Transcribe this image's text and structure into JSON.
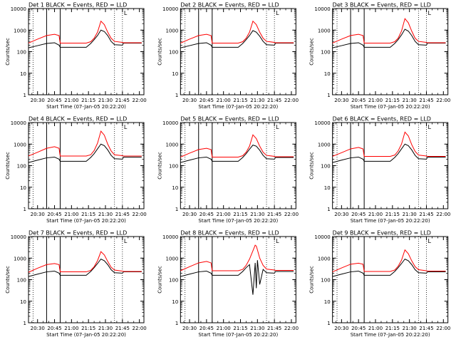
{
  "figure": {
    "start_time_label": "Start Time (07-Jan-05 20:22:20)",
    "ylabel": "Counts/sec",
    "x_tick_labels": [
      "20:30",
      "20:45",
      "21:00",
      "21:15",
      "21:30",
      "21:45",
      "22:00"
    ],
    "y_tick_labels": [
      "1",
      "10",
      "100",
      "1000",
      "10000"
    ],
    "colors": {
      "events": "#000000",
      "lld": "#ff0000",
      "axes": "#000000"
    }
  },
  "chart_data": [
    {
      "type": "line",
      "title": "Det 1  BLACK = Events, RED = LLD",
      "ylabel": "Counts/sec",
      "xlabel": "Start Time (07-Jan-05 20:22:20)",
      "yscale": "log",
      "ylim": [
        1,
        10000
      ],
      "xlim": [
        "20:22",
        "22:04"
      ],
      "x": [
        "20:22",
        "20:30",
        "20:38",
        "20:45",
        "20:49",
        "20:50",
        "20:57",
        "21:05",
        "21:13",
        "21:17",
        "21:20",
        "21:23",
        "21:26",
        "21:29",
        "21:32",
        "21:35",
        "21:38",
        "21:45",
        "21:46",
        "21:55",
        "22:02"
      ],
      "series": [
        {
          "name": "BLACK = Events",
          "values": [
            150,
            190,
            240,
            260,
            200,
            160,
            160,
            160,
            160,
            240,
            360,
            560,
            1000,
            860,
            560,
            300,
            210,
            200,
            250,
            250,
            250
          ]
        },
        {
          "name": "RED = LLD",
          "values": [
            250,
            380,
            560,
            640,
            560,
            250,
            250,
            250,
            250,
            290,
            420,
            800,
            2600,
            1800,
            800,
            420,
            300,
            270,
            260,
            260,
            260
          ]
        }
      ],
      "vertical_lines": [
        "20:38",
        "20:50"
      ],
      "dotted_lines": [
        "20:26",
        "21:38",
        "21:45"
      ],
      "marker_label": "L"
    },
    {
      "type": "line",
      "title": "Det 2  BLACK = Events, RED = LLD",
      "ylabel": "Counts/sec",
      "xlabel": "Start Time (07-Jan-05 20:22:20)",
      "yscale": "log",
      "ylim": [
        1,
        10000
      ],
      "xlim": [
        "20:22",
        "22:04"
      ],
      "x": [
        "20:22",
        "20:30",
        "20:38",
        "20:45",
        "20:49",
        "20:50",
        "20:57",
        "21:05",
        "21:13",
        "21:17",
        "21:20",
        "21:23",
        "21:26",
        "21:29",
        "21:32",
        "21:35",
        "21:38",
        "21:45",
        "21:46",
        "21:55",
        "22:02"
      ],
      "series": [
        {
          "name": "BLACK = Events",
          "values": [
            150,
            190,
            240,
            260,
            200,
            160,
            160,
            160,
            160,
            240,
            360,
            560,
            950,
            800,
            520,
            300,
            210,
            200,
            250,
            250,
            250
          ]
        },
        {
          "name": "RED = LLD",
          "values": [
            250,
            380,
            560,
            640,
            560,
            250,
            250,
            250,
            250,
            290,
            420,
            800,
            2600,
            1800,
            800,
            420,
            300,
            270,
            260,
            260,
            260
          ]
        }
      ],
      "vertical_lines": [
        "20:38",
        "20:50"
      ],
      "dotted_lines": [
        "20:26",
        "21:38",
        "21:45"
      ],
      "marker_label": "L"
    },
    {
      "type": "line",
      "title": "Det 3  BLACK = Events, RED = LLD",
      "ylabel": "Counts/sec",
      "xlabel": "Start Time (07-Jan-05 20:22:20)",
      "yscale": "log",
      "ylim": [
        1,
        10000
      ],
      "xlim": [
        "20:22",
        "22:04"
      ],
      "x": [
        "20:22",
        "20:30",
        "20:38",
        "20:45",
        "20:49",
        "20:50",
        "20:57",
        "21:05",
        "21:13",
        "21:17",
        "21:20",
        "21:23",
        "21:26",
        "21:29",
        "21:32",
        "21:35",
        "21:38",
        "21:45",
        "21:46",
        "21:55",
        "22:02"
      ],
      "series": [
        {
          "name": "BLACK = Events",
          "values": [
            150,
            190,
            240,
            260,
            200,
            160,
            160,
            160,
            160,
            240,
            360,
            600,
            1100,
            900,
            560,
            300,
            210,
            200,
            250,
            250,
            250
          ]
        },
        {
          "name": "RED = LLD",
          "values": [
            250,
            380,
            560,
            640,
            560,
            250,
            250,
            250,
            250,
            290,
            420,
            900,
            3400,
            2200,
            900,
            420,
            300,
            270,
            260,
            260,
            260
          ]
        }
      ],
      "vertical_lines": [
        "20:38",
        "20:50"
      ],
      "dotted_lines": [
        "20:26",
        "21:38",
        "21:45"
      ],
      "marker_label": "L"
    },
    {
      "type": "line",
      "title": "Det 4  BLACK = Events, RED = LLD",
      "ylabel": "Counts/sec",
      "xlabel": "Start Time (07-Jan-05 20:22:20)",
      "yscale": "log",
      "ylim": [
        1,
        10000
      ],
      "xlim": [
        "20:22",
        "22:04"
      ],
      "x": [
        "20:22",
        "20:30",
        "20:38",
        "20:45",
        "20:49",
        "20:50",
        "20:57",
        "21:05",
        "21:13",
        "21:17",
        "21:20",
        "21:23",
        "21:26",
        "21:29",
        "21:32",
        "21:35",
        "21:38",
        "21:45",
        "21:46",
        "21:55",
        "22:02"
      ],
      "series": [
        {
          "name": "BLACK = Events",
          "values": [
            140,
            180,
            230,
            250,
            200,
            160,
            160,
            160,
            160,
            240,
            360,
            600,
            1000,
            850,
            540,
            300,
            210,
            200,
            250,
            250,
            250
          ]
        },
        {
          "name": "RED = LLD",
          "values": [
            280,
            420,
            640,
            760,
            640,
            280,
            280,
            280,
            280,
            320,
            500,
            1100,
            4000,
            2600,
            1000,
            480,
            320,
            290,
            280,
            280,
            280
          ]
        }
      ],
      "vertical_lines": [
        "20:38",
        "20:50"
      ],
      "dotted_lines": [
        "20:26",
        "21:38",
        "21:45"
      ],
      "marker_label": "L"
    },
    {
      "type": "line",
      "title": "Det 5  BLACK = Events, RED = LLD",
      "ylabel": "Counts/sec",
      "xlabel": "Start Time (07-Jan-05 20:22:20)",
      "yscale": "log",
      "ylim": [
        1,
        10000
      ],
      "xlim": [
        "20:22",
        "22:04"
      ],
      "x": [
        "20:22",
        "20:30",
        "20:38",
        "20:45",
        "20:49",
        "20:50",
        "20:57",
        "21:05",
        "21:13",
        "21:17",
        "21:20",
        "21:23",
        "21:26",
        "21:29",
        "21:32",
        "21:35",
        "21:38",
        "21:45",
        "21:46",
        "21:55",
        "22:02"
      ],
      "series": [
        {
          "name": "BLACK = Events",
          "values": [
            140,
            180,
            230,
            250,
            200,
            160,
            160,
            160,
            160,
            240,
            360,
            580,
            900,
            800,
            520,
            300,
            210,
            200,
            240,
            240,
            240
          ]
        },
        {
          "name": "RED = LLD",
          "values": [
            250,
            380,
            560,
            640,
            560,
            250,
            250,
            250,
            250,
            290,
            420,
            800,
            2700,
            1800,
            800,
            420,
            300,
            270,
            260,
            260,
            260
          ]
        }
      ],
      "vertical_lines": [
        "20:38",
        "20:50"
      ],
      "dotted_lines": [
        "20:26",
        "21:38",
        "21:45"
      ],
      "marker_label": "L"
    },
    {
      "type": "line",
      "title": "Det 6  BLACK = Events, RED = LLD",
      "ylabel": "Counts/sec",
      "xlabel": "Start Time (07-Jan-05 20:22:20)",
      "yscale": "log",
      "ylim": [
        1,
        10000
      ],
      "xlim": [
        "20:22",
        "22:04"
      ],
      "x": [
        "20:22",
        "20:30",
        "20:38",
        "20:45",
        "20:49",
        "20:50",
        "20:57",
        "21:05",
        "21:13",
        "21:17",
        "21:20",
        "21:23",
        "21:26",
        "21:29",
        "21:32",
        "21:35",
        "21:38",
        "21:45",
        "21:46",
        "21:55",
        "22:02"
      ],
      "series": [
        {
          "name": "BLACK = Events",
          "values": [
            140,
            180,
            230,
            250,
            200,
            160,
            160,
            160,
            160,
            240,
            360,
            600,
            1000,
            850,
            540,
            300,
            210,
            200,
            250,
            250,
            250
          ]
        },
        {
          "name": "RED = LLD",
          "values": [
            270,
            400,
            600,
            700,
            600,
            270,
            270,
            270,
            270,
            310,
            480,
            1000,
            3600,
            2400,
            950,
            460,
            310,
            280,
            270,
            270,
            270
          ]
        }
      ],
      "vertical_lines": [
        "20:38",
        "20:50"
      ],
      "dotted_lines": [
        "20:26",
        "21:38",
        "21:45"
      ],
      "marker_label": "L"
    },
    {
      "type": "line",
      "title": "Det 7  BLACK = Events, RED = LLD",
      "ylabel": "Counts/sec",
      "xlabel": "Start Time (07-Jan-05 20:22:20)",
      "yscale": "log",
      "ylim": [
        1,
        10000
      ],
      "xlim": [
        "20:22",
        "22:04"
      ],
      "x": [
        "20:22",
        "20:30",
        "20:38",
        "20:45",
        "20:49",
        "20:50",
        "20:57",
        "21:05",
        "21:13",
        "21:17",
        "21:20",
        "21:23",
        "21:26",
        "21:29",
        "21:32",
        "21:35",
        "21:38",
        "21:45",
        "21:46",
        "21:55",
        "22:02"
      ],
      "series": [
        {
          "name": "BLACK = Events",
          "values": [
            140,
            180,
            230,
            250,
            200,
            160,
            160,
            160,
            160,
            240,
            360,
            560,
            900,
            760,
            500,
            290,
            210,
            200,
            230,
            230,
            230
          ]
        },
        {
          "name": "RED = LLD",
          "values": [
            220,
            340,
            500,
            560,
            500,
            230,
            230,
            230,
            230,
            270,
            400,
            760,
            2000,
            1400,
            700,
            380,
            280,
            250,
            240,
            240,
            240
          ]
        }
      ],
      "vertical_lines": [
        "20:38",
        "20:50"
      ],
      "dotted_lines": [
        "20:26",
        "21:38",
        "21:45"
      ],
      "marker_label": "L"
    },
    {
      "type": "line",
      "title": "Det 8  BLACK = Events, RED = LLD",
      "ylabel": "Counts/sec",
      "xlabel": "Start Time (07-Jan-05 20:22:20)",
      "yscale": "log",
      "ylim": [
        1,
        10000
      ],
      "xlim": [
        "20:22",
        "22:04"
      ],
      "x": [
        "20:22",
        "20:30",
        "20:38",
        "20:45",
        "20:49",
        "20:50",
        "20:57",
        "21:05",
        "21:13",
        "21:17",
        "21:20",
        "21:23",
        "21:26",
        "21:28",
        "21:29",
        "21:30",
        "21:32",
        "21:35",
        "21:38",
        "21:45",
        "21:46",
        "21:55",
        "22:02"
      ],
      "series": [
        {
          "name": "BLACK = Events",
          "values": [
            140,
            180,
            230,
            250,
            200,
            160,
            160,
            160,
            160,
            240,
            360,
            500,
            20,
            600,
            40,
            800,
            60,
            300,
            210,
            200,
            240,
            240,
            240
          ]
        },
        {
          "name": "RED = LLD",
          "values": [
            260,
            400,
            600,
            700,
            600,
            260,
            260,
            260,
            260,
            300,
            460,
            900,
            2200,
            4000,
            3600,
            2400,
            1000,
            460,
            310,
            280,
            270,
            270,
            270
          ]
        }
      ],
      "vertical_lines": [
        "20:38",
        "20:50"
      ],
      "dotted_lines": [
        "20:26",
        "21:38",
        "21:45"
      ],
      "marker_label": "L"
    },
    {
      "type": "line",
      "title": "Det 9  BLACK = Events, RED = LLD",
      "ylabel": "Counts/sec",
      "xlabel": "Start Time (07-Jan-05 20:22:20)",
      "yscale": "log",
      "ylim": [
        1,
        10000
      ],
      "xlim": [
        "20:22",
        "22:04"
      ],
      "x": [
        "20:22",
        "20:30",
        "20:38",
        "20:45",
        "20:49",
        "20:50",
        "20:57",
        "21:05",
        "21:13",
        "21:17",
        "21:20",
        "21:23",
        "21:26",
        "21:29",
        "21:32",
        "21:35",
        "21:38",
        "21:45",
        "21:46",
        "21:55",
        "22:02"
      ],
      "series": [
        {
          "name": "BLACK = Events",
          "values": [
            140,
            180,
            230,
            250,
            200,
            160,
            160,
            160,
            160,
            240,
            360,
            560,
            900,
            760,
            500,
            290,
            210,
            200,
            230,
            230,
            230
          ]
        },
        {
          "name": "RED = LLD",
          "values": [
            230,
            350,
            520,
            580,
            520,
            240,
            240,
            240,
            240,
            280,
            420,
            800,
            2400,
            1600,
            750,
            400,
            290,
            260,
            250,
            250,
            250
          ]
        }
      ],
      "vertical_lines": [
        "20:38",
        "20:50"
      ],
      "dotted_lines": [
        "20:26",
        "21:38",
        "21:45"
      ],
      "marker_label": "L"
    }
  ]
}
